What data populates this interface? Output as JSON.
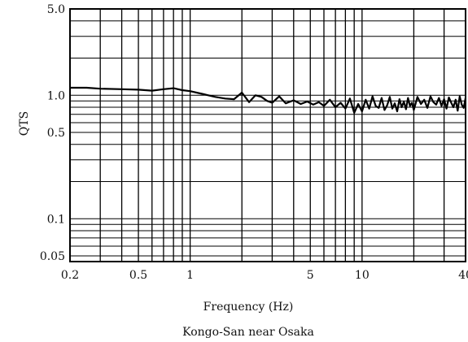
{
  "chart_data": {
    "type": "line",
    "title": "",
    "caption": "Kongo-San near Osaka",
    "xlabel": "Frequency (Hz)",
    "ylabel": "QTS",
    "xscale": "log",
    "yscale": "log",
    "xlim": [
      0.2,
      40
    ],
    "ylim": [
      0.045,
      5.0
    ],
    "grid": true,
    "x_tick_labels": [
      {
        "value": 0.2,
        "label": "0.2"
      },
      {
        "value": 0.5,
        "label": "0.5"
      },
      {
        "value": 1,
        "label": "1"
      },
      {
        "value": 5,
        "label": "5"
      },
      {
        "value": 10,
        "label": "10"
      },
      {
        "value": 40,
        "label": "40"
      }
    ],
    "y_tick_labels": [
      {
        "value": 5.0,
        "label": "5.0"
      },
      {
        "value": 1.0,
        "label": "1.0"
      },
      {
        "value": 0.5,
        "label": "0.5"
      },
      {
        "value": 0.1,
        "label": "0.1"
      },
      {
        "value": 0.05,
        "label": "0.05"
      }
    ],
    "x_grid": [
      0.2,
      0.3,
      0.4,
      0.5,
      0.6,
      0.7,
      0.8,
      0.9,
      1,
      2,
      3,
      4,
      5,
      6,
      7,
      8,
      9,
      10,
      20,
      30,
      40
    ],
    "y_grid": [
      0.05,
      0.06,
      0.07,
      0.08,
      0.09,
      0.1,
      0.2,
      0.3,
      0.4,
      0.5,
      0.6,
      0.7,
      0.8,
      0.9,
      1.0,
      2.0,
      3.0,
      4.0,
      5.0
    ],
    "series": [
      {
        "color": "#000000",
        "x": [
          0.2,
          0.25,
          0.3,
          0.4,
          0.5,
          0.6,
          0.7,
          0.8,
          0.9,
          1.0,
          1.2,
          1.4,
          1.6,
          1.8,
          2.0,
          2.2,
          2.4,
          2.6,
          2.8,
          3.0,
          3.3,
          3.6,
          4.0,
          4.4,
          4.8,
          5.2,
          5.6,
          6.0,
          6.5,
          7.0,
          7.5,
          8.0,
          8.5,
          9.0,
          9.5,
          10.0,
          10.5,
          11,
          11.5,
          12,
          12.5,
          13,
          13.5,
          14,
          14.5,
          15,
          15.5,
          16,
          16.5,
          17,
          17.5,
          18,
          18.5,
          19,
          19.5,
          20,
          21,
          22,
          23,
          24,
          25,
          26,
          27,
          28,
          29,
          30,
          31,
          32,
          33,
          34,
          35,
          36,
          37,
          38,
          39,
          40
        ],
        "values": [
          1.15,
          1.15,
          1.13,
          1.12,
          1.11,
          1.09,
          1.12,
          1.14,
          1.1,
          1.08,
          1.02,
          0.97,
          0.94,
          0.93,
          1.05,
          0.88,
          1.0,
          0.97,
          0.9,
          0.87,
          0.98,
          0.86,
          0.91,
          0.85,
          0.89,
          0.84,
          0.88,
          0.82,
          0.92,
          0.8,
          0.87,
          0.78,
          0.94,
          0.72,
          0.85,
          0.74,
          0.92,
          0.78,
          0.98,
          0.82,
          0.79,
          0.95,
          0.76,
          0.83,
          0.97,
          0.78,
          0.86,
          0.74,
          0.93,
          0.8,
          0.89,
          0.77,
          0.95,
          0.82,
          0.87,
          0.76,
          0.97,
          0.85,
          0.92,
          0.79,
          0.98,
          0.88,
          0.84,
          0.95,
          0.82,
          0.93,
          0.78,
          0.96,
          0.87,
          0.8,
          0.92,
          0.75,
          0.98,
          0.84,
          0.79,
          0.95
        ]
      }
    ]
  }
}
